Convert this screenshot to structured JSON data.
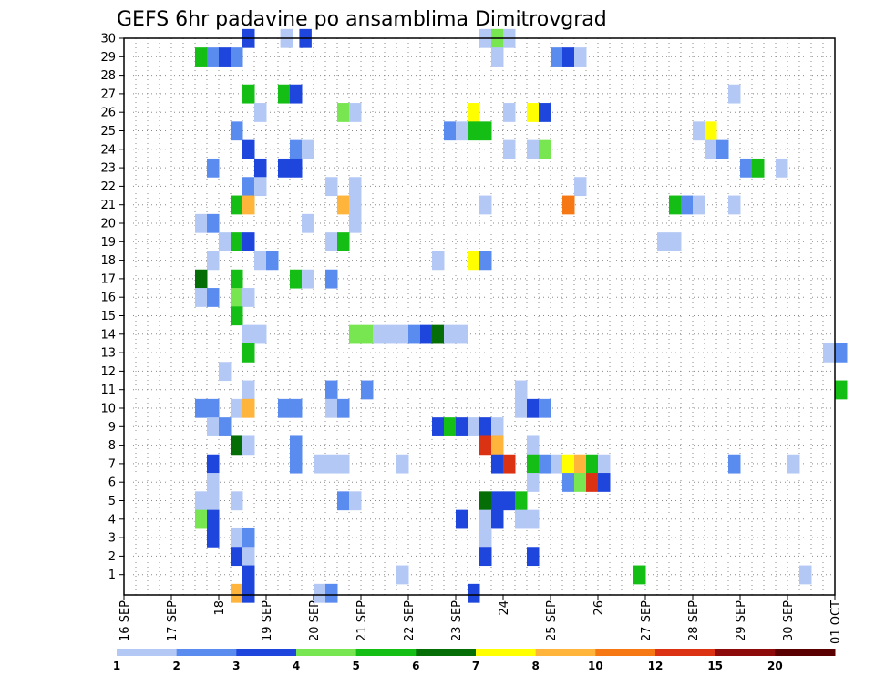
{
  "chart_data": {
    "type": "heatmap",
    "title": "GEFS 6hr padavine po ansamblima Dimitrovgrad",
    "xlabel": "",
    "ylabel": "",
    "y_members": [
      1,
      2,
      3,
      4,
      5,
      6,
      7,
      8,
      9,
      10,
      11,
      12,
      13,
      14,
      15,
      16,
      17,
      18,
      19,
      20,
      21,
      22,
      23,
      24,
      25,
      26,
      27,
      28,
      29,
      30
    ],
    "x_tick_labels": [
      "16 SEP",
      "17 SEP",
      "18",
      "19 SEP",
      "20 SEP",
      "21 SEP",
      "22 SEP",
      "23 SEP",
      "24",
      "25 SEP",
      "26",
      "27 SEP",
      "28 SEP",
      "29 SEP",
      "30 SEP",
      "01 OCT"
    ],
    "x_day_range": [
      0,
      15
    ],
    "steps_per_day": 4,
    "legend": {
      "labels": [
        "1",
        "2",
        "3",
        "4",
        "5",
        "6",
        "7",
        "8",
        "10",
        "12",
        "15",
        "20"
      ],
      "colors": [
        "#b4c8f5",
        "#5a8cf0",
        "#1e46dc",
        "#1e46dc",
        "#78e650",
        "#14be14",
        "#066e06",
        "#ffff00",
        "#ffb43c",
        "#f57814",
        "#dc3214",
        "#8c0a0a",
        "#5a0000"
      ]
    },
    "cells": [
      [
        30,
        2.5,
        3
      ],
      [
        30,
        3.3,
        1
      ],
      [
        30,
        3.7,
        3
      ],
      [
        30,
        7.5,
        1
      ],
      [
        30,
        7.75,
        5
      ],
      [
        30,
        8.0,
        1
      ],
      [
        29,
        1.5,
        5
      ],
      [
        29,
        1.75,
        2
      ],
      [
        29,
        2.0,
        3
      ],
      [
        29,
        2.25,
        2
      ],
      [
        29,
        7.75,
        1
      ],
      [
        29,
        9.0,
        2
      ],
      [
        29,
        9.25,
        3
      ],
      [
        29,
        9.5,
        1
      ],
      [
        27,
        2.5,
        5
      ],
      [
        27,
        3.25,
        5
      ],
      [
        27,
        3.5,
        3
      ],
      [
        27,
        12.75,
        1
      ],
      [
        26,
        2.75,
        1
      ],
      [
        26,
        4.5,
        5
      ],
      [
        26,
        4.75,
        1
      ],
      [
        26,
        7.25,
        8
      ],
      [
        26,
        8.0,
        1
      ],
      [
        26,
        8.5,
        8
      ],
      [
        26,
        8.75,
        3
      ],
      [
        25,
        2.25,
        2
      ],
      [
        25,
        6.75,
        2
      ],
      [
        25,
        7.0,
        1
      ],
      [
        25,
        7.25,
        5
      ],
      [
        25,
        7.5,
        5
      ],
      [
        25,
        12.0,
        1
      ],
      [
        25,
        12.25,
        8
      ],
      [
        24,
        2.5,
        3
      ],
      [
        24,
        3.5,
        2
      ],
      [
        24,
        3.75,
        1
      ],
      [
        24,
        8.0,
        1
      ],
      [
        24,
        8.5,
        1
      ],
      [
        24,
        8.75,
        5
      ],
      [
        24,
        12.25,
        1
      ],
      [
        24,
        12.5,
        2
      ],
      [
        23,
        1.75,
        2
      ],
      [
        23,
        2.75,
        3
      ],
      [
        23,
        3.25,
        3
      ],
      [
        23,
        3.5,
        3
      ],
      [
        23,
        13.0,
        2
      ],
      [
        23,
        13.25,
        5
      ],
      [
        23,
        13.75,
        1
      ],
      [
        22,
        2.5,
        2
      ],
      [
        22,
        2.75,
        1
      ],
      [
        22,
        4.25,
        1
      ],
      [
        22,
        4.75,
        1
      ],
      [
        22,
        9.5,
        1
      ],
      [
        21,
        2.25,
        5
      ],
      [
        21,
        2.5,
        10
      ],
      [
        21,
        4.5,
        10
      ],
      [
        21,
        4.75,
        1
      ],
      [
        21,
        7.5,
        1
      ],
      [
        21,
        9.25,
        12
      ],
      [
        21,
        11.5,
        5
      ],
      [
        21,
        11.75,
        2
      ],
      [
        21,
        12.0,
        1
      ],
      [
        21,
        12.75,
        1
      ],
      [
        20,
        1.5,
        1
      ],
      [
        20,
        1.75,
        2
      ],
      [
        20,
        3.75,
        1
      ],
      [
        20,
        4.75,
        1
      ],
      [
        19,
        2.0,
        1
      ],
      [
        19,
        2.25,
        5
      ],
      [
        19,
        2.5,
        3
      ],
      [
        19,
        4.25,
        1
      ],
      [
        19,
        4.5,
        5
      ],
      [
        19,
        11.25,
        1
      ],
      [
        19,
        11.5,
        1
      ],
      [
        18,
        1.75,
        1
      ],
      [
        18,
        2.75,
        1
      ],
      [
        18,
        3.0,
        2
      ],
      [
        18,
        6.5,
        1
      ],
      [
        18,
        7.25,
        8
      ],
      [
        18,
        7.5,
        2
      ],
      [
        17,
        1.5,
        6
      ],
      [
        17,
        2.25,
        5
      ],
      [
        17,
        3.5,
        5
      ],
      [
        17,
        3.75,
        1
      ],
      [
        17,
        4.25,
        2
      ],
      [
        16,
        1.5,
        1
      ],
      [
        16,
        1.75,
        2
      ],
      [
        16,
        2.25,
        5
      ],
      [
        16,
        2.5,
        1
      ],
      [
        15,
        2.25,
        5
      ],
      [
        14,
        2.5,
        1
      ],
      [
        14,
        2.75,
        1
      ],
      [
        14,
        4.75,
        5
      ],
      [
        14,
        5.0,
        5
      ],
      [
        14,
        5.25,
        1
      ],
      [
        14,
        5.5,
        1
      ],
      [
        14,
        5.75,
        1
      ],
      [
        14,
        6.0,
        2
      ],
      [
        14,
        6.25,
        3
      ],
      [
        14,
        6.5,
        6
      ],
      [
        14,
        6.75,
        1
      ],
      [
        14,
        7.0,
        1
      ],
      [
        13,
        2.5,
        5
      ],
      [
        13,
        14.75,
        1
      ],
      [
        13,
        15.0,
        2
      ],
      [
        12,
        2.0,
        1
      ],
      [
        11,
        2.5,
        1
      ],
      [
        11,
        4.25,
        2
      ],
      [
        11,
        5.0,
        2
      ],
      [
        11,
        8.25,
        1
      ],
      [
        11,
        15.0,
        5
      ],
      [
        10,
        1.5,
        2
      ],
      [
        10,
        1.75,
        2
      ],
      [
        10,
        2.25,
        1
      ],
      [
        10,
        2.5,
        10
      ],
      [
        10,
        3.25,
        2
      ],
      [
        10,
        3.5,
        2
      ],
      [
        10,
        4.25,
        1
      ],
      [
        10,
        4.5,
        2
      ],
      [
        10,
        8.25,
        1
      ],
      [
        10,
        8.5,
        3
      ],
      [
        10,
        8.75,
        2
      ],
      [
        9,
        1.75,
        1
      ],
      [
        9,
        2.0,
        2
      ],
      [
        9,
        6.5,
        3
      ],
      [
        9,
        6.75,
        5
      ],
      [
        9,
        7.0,
        3
      ],
      [
        9,
        7.25,
        1
      ],
      [
        9,
        7.5,
        3
      ],
      [
        9,
        7.75,
        1
      ],
      [
        8,
        2.25,
        6
      ],
      [
        8,
        2.5,
        1
      ],
      [
        8,
        3.5,
        2
      ],
      [
        8,
        7.5,
        15
      ],
      [
        8,
        7.75,
        10
      ],
      [
        8,
        8.5,
        1
      ],
      [
        7,
        1.75,
        3
      ],
      [
        7,
        3.5,
        2
      ],
      [
        7,
        4.0,
        1
      ],
      [
        7,
        4.25,
        1
      ],
      [
        7,
        4.5,
        1
      ],
      [
        7,
        5.75,
        1
      ],
      [
        7,
        7.75,
        3
      ],
      [
        7,
        8.0,
        15
      ],
      [
        7,
        8.5,
        5
      ],
      [
        7,
        8.75,
        2
      ],
      [
        7,
        9.0,
        1
      ],
      [
        7,
        9.25,
        8
      ],
      [
        7,
        9.5,
        10
      ],
      [
        7,
        9.75,
        5
      ],
      [
        7,
        10.0,
        1
      ],
      [
        7,
        12.75,
        2
      ],
      [
        7,
        14.0,
        1
      ],
      [
        6,
        1.75,
        1
      ],
      [
        6,
        8.5,
        1
      ],
      [
        6,
        9.25,
        2
      ],
      [
        6,
        9.5,
        5
      ],
      [
        6,
        9.75,
        15
      ],
      [
        6,
        10.0,
        3
      ],
      [
        5,
        1.5,
        1
      ],
      [
        5,
        1.75,
        1
      ],
      [
        5,
        2.25,
        1
      ],
      [
        5,
        4.5,
        2
      ],
      [
        5,
        4.75,
        1
      ],
      [
        5,
        7.5,
        6
      ],
      [
        5,
        7.75,
        3
      ],
      [
        5,
        8.0,
        3
      ],
      [
        5,
        8.25,
        5
      ],
      [
        4,
        1.5,
        5
      ],
      [
        4,
        1.75,
        3
      ],
      [
        4,
        7.0,
        3
      ],
      [
        4,
        7.5,
        1
      ],
      [
        4,
        7.75,
        3
      ],
      [
        4,
        8.25,
        1
      ],
      [
        4,
        8.5,
        1
      ],
      [
        3,
        1.75,
        3
      ],
      [
        3,
        2.25,
        1
      ],
      [
        3,
        2.5,
        2
      ],
      [
        3,
        7.5,
        1
      ],
      [
        2,
        2.25,
        3
      ],
      [
        2,
        2.5,
        1
      ],
      [
        2,
        7.5,
        3
      ],
      [
        2,
        8.5,
        3
      ],
      [
        1,
        2.5,
        3
      ],
      [
        1,
        5.75,
        1
      ],
      [
        1,
        10.75,
        5
      ],
      [
        1,
        14.25,
        1
      ],
      [
        0,
        2.25,
        10
      ],
      [
        0,
        2.5,
        3
      ],
      [
        0,
        4.0,
        1
      ],
      [
        0,
        4.25,
        2
      ],
      [
        0,
        7.25,
        3
      ]
    ]
  }
}
